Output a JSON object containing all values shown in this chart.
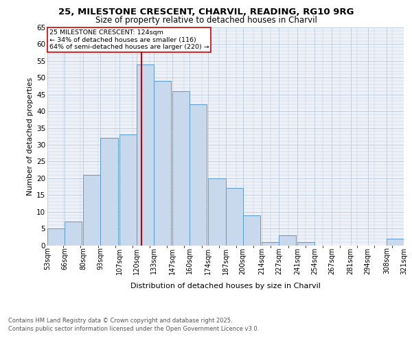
{
  "title_line1": "25, MILESTONE CRESCENT, CHARVIL, READING, RG10 9RG",
  "title_line2": "Size of property relative to detached houses in Charvil",
  "xlabel": "Distribution of detached houses by size in Charvil",
  "ylabel": "Number of detached properties",
  "bin_edges": [
    53,
    66,
    80,
    93,
    107,
    120,
    133,
    147,
    160,
    174,
    187,
    200,
    214,
    227,
    241,
    254,
    267,
    281,
    294,
    308,
    321
  ],
  "bin_labels": [
    "53sqm",
    "66sqm",
    "80sqm",
    "93sqm",
    "107sqm",
    "120sqm",
    "133sqm",
    "147sqm",
    "160sqm",
    "174sqm",
    "187sqm",
    "200sqm",
    "214sqm",
    "227sqm",
    "241sqm",
    "254sqm",
    "267sqm",
    "281sqm",
    "294sqm",
    "308sqm",
    "321sqm"
  ],
  "counts": [
    5,
    7,
    21,
    32,
    33,
    54,
    49,
    46,
    42,
    20,
    17,
    9,
    1,
    3,
    1,
    0,
    0,
    0,
    0,
    2
  ],
  "bar_facecolor": "#c9d9ed",
  "bar_edgecolor": "#5b9bd5",
  "vline_x": 124,
  "vline_color": "#cc0000",
  "annotation_text_line1": "25 MILESTONE CRESCENT: 124sqm",
  "annotation_text_line2": "← 34% of detached houses are smaller (116)",
  "annotation_text_line3": "64% of semi-detached houses are larger (220) →",
  "annotation_box_edgecolor": "#cc0000",
  "annotation_bg": "#ffffff",
  "grid_color": "#c0cfe0",
  "background_color": "#eef2f8",
  "footer_line1": "Contains HM Land Registry data © Crown copyright and database right 2025.",
  "footer_line2": "Contains public sector information licensed under the Open Government Licence v3.0.",
  "ylim": [
    0,
    65
  ],
  "yticks": [
    0,
    5,
    10,
    15,
    20,
    25,
    30,
    35,
    40,
    45,
    50,
    55,
    60,
    65
  ]
}
